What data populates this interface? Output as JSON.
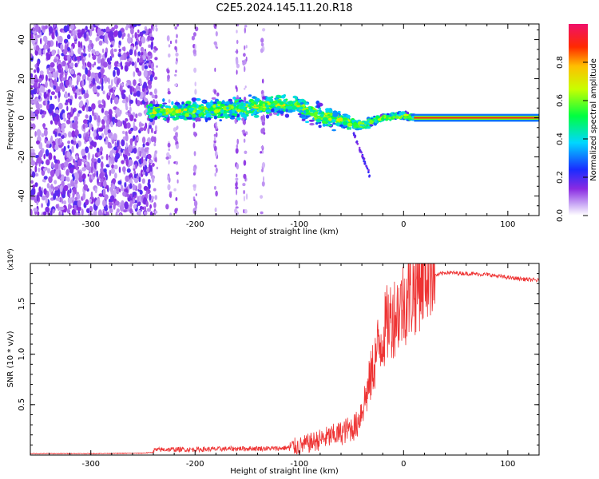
{
  "title": "C2E5.2024.145.11.20.R18",
  "chart_data": [
    {
      "type": "heatmap",
      "xlabel": "Height of straight line (km)",
      "ylabel": "Frequency (Hz)",
      "xlim": [
        -358,
        130
      ],
      "ylim": [
        -50,
        48
      ],
      "xticks": [
        -300,
        -200,
        -100,
        0,
        100
      ],
      "yticks": [
        -40,
        -20,
        0,
        20,
        40
      ],
      "colorbar": {
        "label": "Normalized spectral amplitude",
        "range": [
          0,
          1
        ],
        "ticks": [
          0.0,
          0.2,
          0.4,
          0.6,
          0.8
        ],
        "tick_labels": [
          "0.0",
          "0.2",
          "0.4",
          "0.6",
          "0.8"
        ]
      },
      "structure": {
        "noise_region_x": [
          -358,
          -240
        ],
        "signal_band": {
          "x": [
            -245,
            -200,
            -150,
            -120,
            -100,
            -80,
            -60,
            -40,
            -30,
            -20,
            -10,
            0,
            10,
            130
          ],
          "center_hz": [
            3,
            4,
            5,
            7,
            6,
            1,
            -1,
            -4,
            -2,
            0,
            1,
            1,
            0,
            0
          ],
          "width_hz": [
            6,
            7,
            7,
            6,
            7,
            8,
            6,
            3,
            3,
            2,
            2,
            3,
            2,
            1
          ]
        },
        "steady_line_from_x": 10
      }
    },
    {
      "type": "line",
      "xlabel": "Height of straight line (km)",
      "ylabel": "SNR (10 * v/v)",
      "y_multiplier": "(x10⁴)",
      "xlim": [
        -358,
        130
      ],
      "ylim": [
        0,
        1.9
      ],
      "xticks": [
        -300,
        -200,
        -100,
        0,
        100
      ],
      "yticks": [
        0.5,
        1.0,
        1.5
      ],
      "ytick_labels": [
        "0.5",
        "1.0",
        "1.5"
      ],
      "series": [
        {
          "color": "#ee3333",
          "x": [
            -358,
            -300,
            -250,
            -230,
            -200,
            -150,
            -120,
            -100,
            -80,
            -60,
            -45,
            -35,
            -25,
            -15,
            -5,
            0,
            10,
            20,
            30,
            40,
            60,
            80,
            100,
            130
          ],
          "y": [
            0.01,
            0.01,
            0.015,
            0.03,
            0.03,
            0.04,
            0.04,
            0.06,
            0.12,
            0.18,
            0.25,
            0.55,
            0.95,
            1.2,
            1.3,
            1.38,
            1.5,
            1.65,
            1.78,
            1.81,
            1.8,
            1.79,
            1.76,
            1.73
          ]
        }
      ]
    }
  ]
}
